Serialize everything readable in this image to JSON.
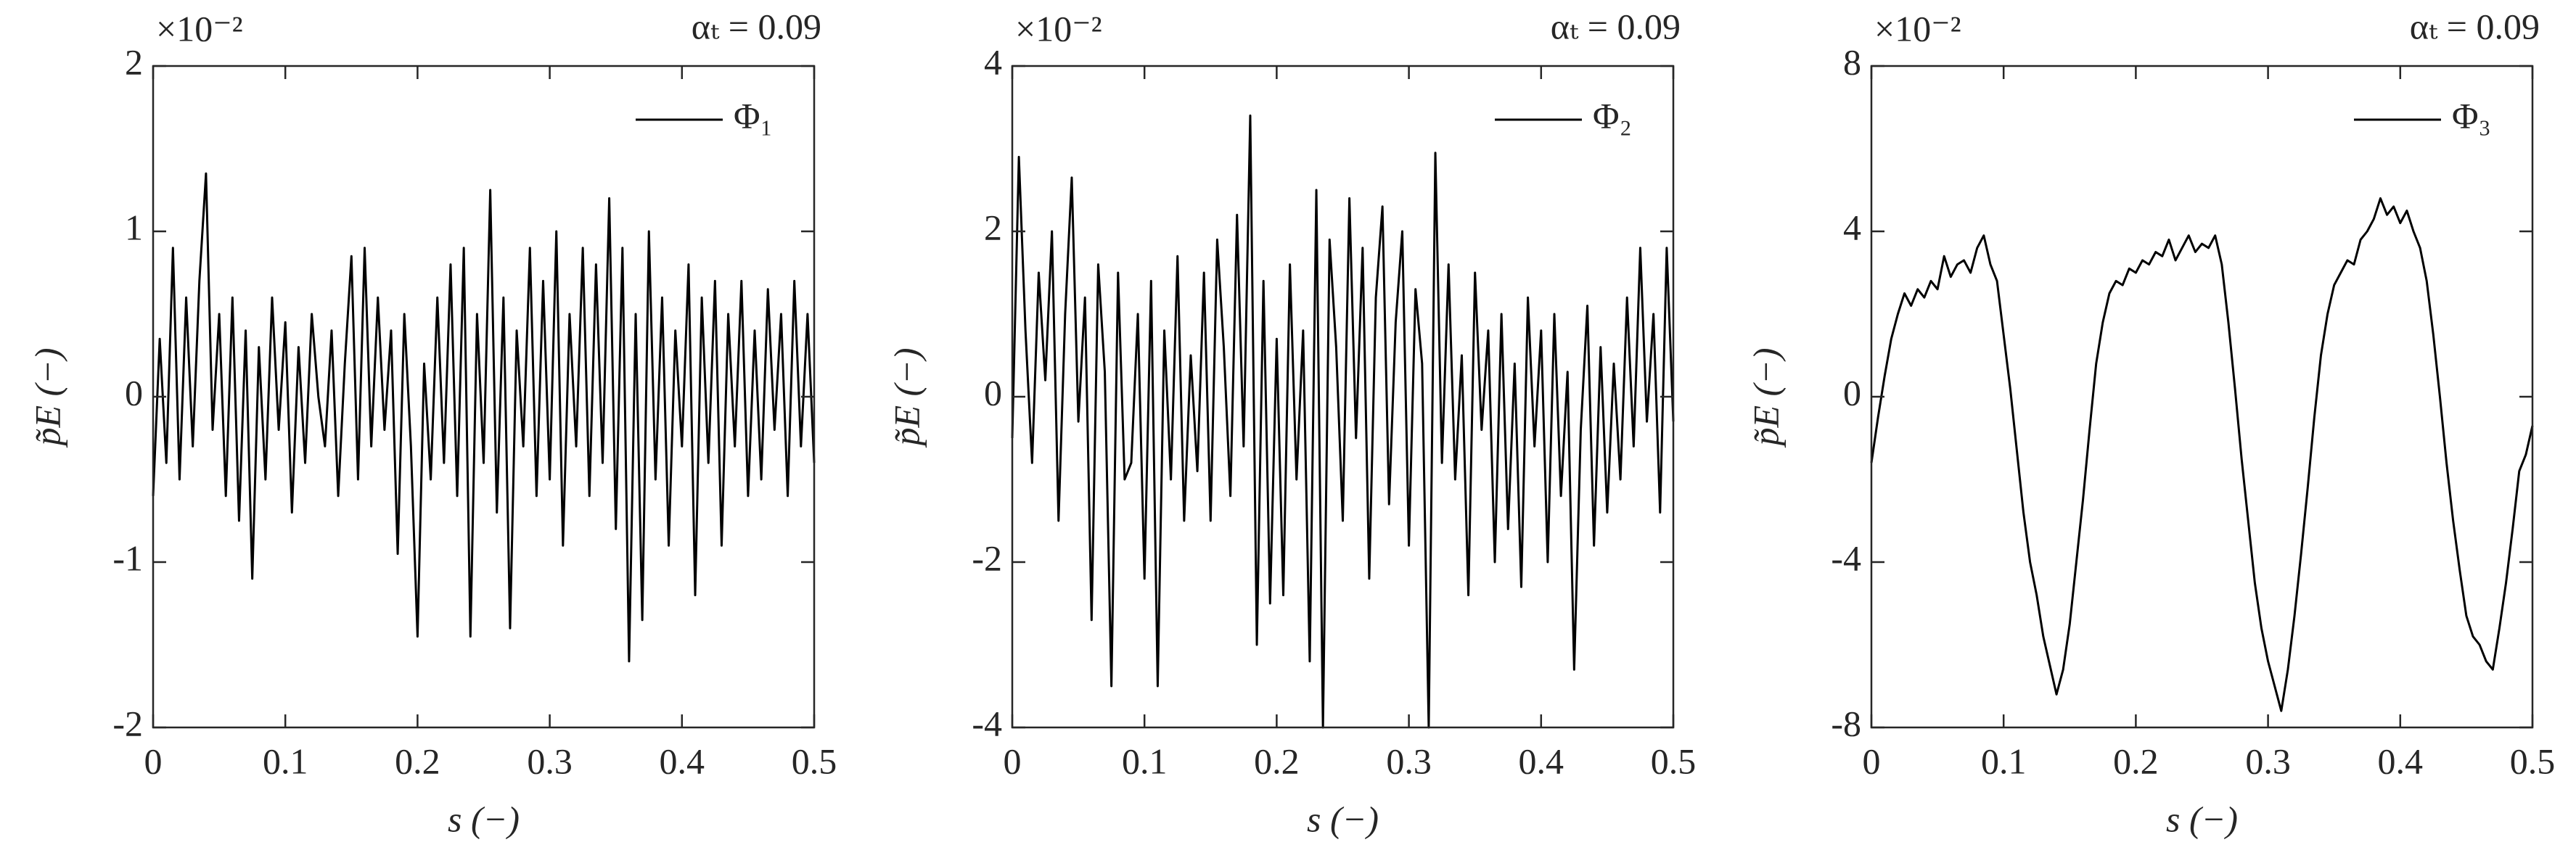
{
  "chart_data": [
    {
      "type": "line",
      "annotation": "αₜ = 0.09",
      "y_multiplier": "×10⁻²",
      "x_label": "s (−)",
      "y_label": "p̃E (−)",
      "xlim": [
        0,
        0.5
      ],
      "ylim": [
        -2,
        2
      ],
      "xticks": [
        0,
        0.1,
        0.2,
        0.3,
        0.4,
        0.5
      ],
      "yticks": [
        -2,
        -1,
        0,
        1,
        2
      ],
      "legend": "upper right",
      "x": [
        0,
        0.005,
        0.01,
        0.015,
        0.02,
        0.025,
        0.03,
        0.035,
        0.04,
        0.045,
        0.05,
        0.055,
        0.06,
        0.065,
        0.07,
        0.075,
        0.08,
        0.085,
        0.09,
        0.095,
        0.1,
        0.105,
        0.11,
        0.115,
        0.12,
        0.125,
        0.13,
        0.135,
        0.14,
        0.145,
        0.15,
        0.155,
        0.16,
        0.165,
        0.17,
        0.175,
        0.18,
        0.185,
        0.19,
        0.195,
        0.2,
        0.205,
        0.21,
        0.215,
        0.22,
        0.225,
        0.23,
        0.235,
        0.24,
        0.245,
        0.25,
        0.255,
        0.26,
        0.265,
        0.27,
        0.275,
        0.28,
        0.285,
        0.29,
        0.295,
        0.3,
        0.305,
        0.31,
        0.315,
        0.32,
        0.325,
        0.33,
        0.335,
        0.34,
        0.345,
        0.35,
        0.355,
        0.36,
        0.365,
        0.37,
        0.375,
        0.38,
        0.385,
        0.39,
        0.395,
        0.4,
        0.405,
        0.41,
        0.415,
        0.42,
        0.425,
        0.43,
        0.435,
        0.44,
        0.445,
        0.45,
        0.455,
        0.46,
        0.465,
        0.47,
        0.475,
        0.48,
        0.485,
        0.49,
        0.495,
        0.5
      ],
      "series": [
        {
          "name": "Φ₁",
          "color": "#000000",
          "values": [
            -0.6,
            0.35,
            -0.4,
            0.9,
            -0.5,
            0.6,
            -0.3,
            0.7,
            1.35,
            -0.2,
            0.5,
            -0.6,
            0.6,
            -0.75,
            0.4,
            -1.1,
            0.3,
            -0.5,
            0.6,
            -0.2,
            0.45,
            -0.7,
            0.3,
            -0.4,
            0.5,
            0.0,
            -0.3,
            0.4,
            -0.6,
            0.2,
            0.85,
            -0.5,
            0.9,
            -0.3,
            0.6,
            -0.2,
            0.4,
            -0.95,
            0.5,
            -0.3,
            -1.45,
            0.2,
            -0.5,
            0.6,
            -0.4,
            0.8,
            -0.6,
            0.9,
            -1.45,
            0.5,
            -0.4,
            1.25,
            -0.7,
            0.6,
            -1.4,
            0.4,
            -0.3,
            0.9,
            -0.6,
            0.7,
            -0.5,
            1.0,
            -0.9,
            0.5,
            -0.3,
            0.9,
            -0.6,
            0.8,
            -0.4,
            1.2,
            -0.8,
            0.9,
            -1.6,
            0.5,
            -1.35,
            1.0,
            -0.5,
            0.6,
            -0.9,
            0.4,
            -0.3,
            0.8,
            -1.2,
            0.6,
            -0.4,
            0.7,
            -0.9,
            0.5,
            -0.3,
            0.7,
            -0.6,
            0.4,
            -0.5,
            0.65,
            -0.2,
            0.5,
            -0.6,
            0.7,
            -0.3,
            0.5,
            -0.4
          ]
        }
      ]
    },
    {
      "type": "line",
      "annotation": "αₜ = 0.09",
      "y_multiplier": "×10⁻²",
      "x_label": "s (−)",
      "y_label": "p̃E (−)",
      "xlim": [
        0,
        0.5
      ],
      "ylim": [
        -4,
        4
      ],
      "xticks": [
        0,
        0.1,
        0.2,
        0.3,
        0.4,
        0.5
      ],
      "yticks": [
        -4,
        -2,
        0,
        2,
        4
      ],
      "legend": "upper right",
      "x": [
        0,
        0.005,
        0.01,
        0.015,
        0.02,
        0.025,
        0.03,
        0.035,
        0.04,
        0.045,
        0.05,
        0.055,
        0.06,
        0.065,
        0.07,
        0.075,
        0.08,
        0.085,
        0.09,
        0.095,
        0.1,
        0.105,
        0.11,
        0.115,
        0.12,
        0.125,
        0.13,
        0.135,
        0.14,
        0.145,
        0.15,
        0.155,
        0.16,
        0.165,
        0.17,
        0.175,
        0.18,
        0.185,
        0.19,
        0.195,
        0.2,
        0.205,
        0.21,
        0.215,
        0.22,
        0.225,
        0.23,
        0.235,
        0.24,
        0.245,
        0.25,
        0.255,
        0.26,
        0.265,
        0.27,
        0.275,
        0.28,
        0.285,
        0.29,
        0.295,
        0.3,
        0.305,
        0.31,
        0.315,
        0.32,
        0.325,
        0.33,
        0.335,
        0.34,
        0.345,
        0.35,
        0.355,
        0.36,
        0.365,
        0.37,
        0.375,
        0.38,
        0.385,
        0.39,
        0.395,
        0.4,
        0.405,
        0.41,
        0.415,
        0.42,
        0.425,
        0.43,
        0.435,
        0.44,
        0.445,
        0.45,
        0.455,
        0.46,
        0.465,
        0.47,
        0.475,
        0.48,
        0.485,
        0.49,
        0.495,
        0.5
      ],
      "series": [
        {
          "name": "Φ₂",
          "color": "#000000",
          "values": [
            -0.5,
            2.9,
            0.8,
            -0.8,
            1.5,
            0.2,
            2.0,
            -1.5,
            1.0,
            2.65,
            -0.3,
            1.2,
            -2.7,
            1.6,
            0.3,
            -3.5,
            1.5,
            -1.0,
            -0.8,
            1.0,
            -2.2,
            1.4,
            -3.5,
            0.8,
            -1.0,
            1.7,
            -1.5,
            0.5,
            -0.9,
            1.5,
            -1.5,
            1.9,
            0.6,
            -1.2,
            2.2,
            -0.6,
            3.4,
            -3.0,
            1.4,
            -2.5,
            0.7,
            -2.4,
            1.6,
            -1.0,
            0.8,
            -3.2,
            2.5,
            -4.0,
            1.9,
            0.6,
            -1.5,
            2.4,
            -0.5,
            1.8,
            -2.2,
            1.2,
            2.3,
            -1.3,
            0.9,
            2.0,
            -1.8,
            1.3,
            0.4,
            -4.0,
            2.95,
            -0.8,
            1.6,
            -1.0,
            0.5,
            -2.4,
            1.5,
            -0.4,
            0.8,
            -2.0,
            1.0,
            -1.6,
            0.4,
            -2.3,
            1.2,
            -0.6,
            0.8,
            -2.0,
            1.0,
            -1.2,
            0.3,
            -3.3,
            -0.4,
            1.1,
            -1.8,
            0.6,
            -1.4,
            0.4,
            -1.0,
            1.2,
            -0.6,
            1.8,
            -0.3,
            1.0,
            -1.4,
            1.8,
            -0.3
          ]
        }
      ]
    },
    {
      "type": "line",
      "annotation": "αₜ = 0.09",
      "y_multiplier": "×10⁻²",
      "x_label": "s (−)",
      "y_label": "p̃E (−)",
      "xlim": [
        0,
        0.5
      ],
      "ylim": [
        -8,
        8
      ],
      "xticks": [
        0,
        0.1,
        0.2,
        0.3,
        0.4,
        0.5
      ],
      "yticks": [
        -8,
        -4,
        0,
        4,
        8
      ],
      "legend": "upper right",
      "x": [
        0,
        0.005,
        0.01,
        0.015,
        0.02,
        0.025,
        0.03,
        0.035,
        0.04,
        0.045,
        0.05,
        0.055,
        0.06,
        0.065,
        0.07,
        0.075,
        0.08,
        0.085,
        0.09,
        0.095,
        0.1,
        0.105,
        0.11,
        0.115,
        0.12,
        0.125,
        0.13,
        0.135,
        0.14,
        0.145,
        0.15,
        0.155,
        0.16,
        0.165,
        0.17,
        0.175,
        0.18,
        0.185,
        0.19,
        0.195,
        0.2,
        0.205,
        0.21,
        0.215,
        0.22,
        0.225,
        0.23,
        0.235,
        0.24,
        0.245,
        0.25,
        0.255,
        0.26,
        0.265,
        0.27,
        0.275,
        0.28,
        0.285,
        0.29,
        0.295,
        0.3,
        0.305,
        0.31,
        0.315,
        0.32,
        0.325,
        0.33,
        0.335,
        0.34,
        0.345,
        0.35,
        0.355,
        0.36,
        0.365,
        0.37,
        0.375,
        0.38,
        0.385,
        0.39,
        0.395,
        0.4,
        0.405,
        0.41,
        0.415,
        0.42,
        0.425,
        0.43,
        0.435,
        0.44,
        0.445,
        0.45,
        0.455,
        0.46,
        0.465,
        0.47,
        0.475,
        0.48,
        0.485,
        0.49,
        0.495,
        0.5
      ],
      "series": [
        {
          "name": "Φ₃",
          "color": "#000000",
          "values": [
            -1.6,
            -0.5,
            0.5,
            1.4,
            2.0,
            2.5,
            2.2,
            2.6,
            2.4,
            2.8,
            2.6,
            3.4,
            2.9,
            3.2,
            3.3,
            3.0,
            3.6,
            3.9,
            3.2,
            2.8,
            1.5,
            0.2,
            -1.3,
            -2.8,
            -4.0,
            -4.8,
            -5.8,
            -6.5,
            -7.2,
            -6.6,
            -5.5,
            -4.0,
            -2.5,
            -0.8,
            0.8,
            1.8,
            2.5,
            2.8,
            2.7,
            3.1,
            3.0,
            3.3,
            3.2,
            3.5,
            3.4,
            3.8,
            3.3,
            3.6,
            3.9,
            3.5,
            3.7,
            3.6,
            3.9,
            3.2,
            1.8,
            0.2,
            -1.5,
            -3.0,
            -4.5,
            -5.6,
            -6.4,
            -7.0,
            -7.6,
            -6.6,
            -5.3,
            -3.8,
            -2.2,
            -0.5,
            1.0,
            2.0,
            2.7,
            3.0,
            3.3,
            3.2,
            3.8,
            4.0,
            4.3,
            4.8,
            4.4,
            4.6,
            4.2,
            4.5,
            4.0,
            3.6,
            2.8,
            1.5,
            0.0,
            -1.6,
            -3.0,
            -4.2,
            -5.3,
            -5.8,
            -6.0,
            -6.4,
            -6.6,
            -5.6,
            -4.5,
            -3.2,
            -1.8,
            -1.4,
            -0.7
          ]
        }
      ]
    }
  ]
}
